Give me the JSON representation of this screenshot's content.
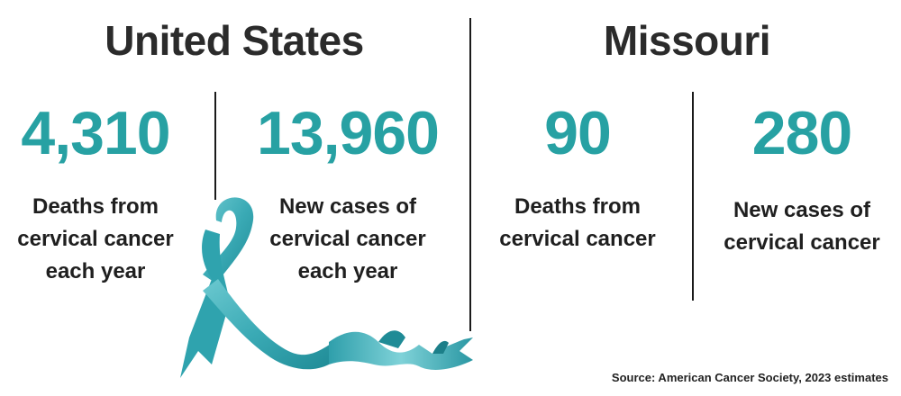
{
  "us": {
    "title": "United States",
    "deaths": {
      "value": "4,310",
      "label": [
        "Deaths from",
        "cervical cancer",
        "each year"
      ]
    },
    "cases": {
      "value": "13,960",
      "label": [
        "New cases of",
        "cervical cancer",
        "each year"
      ]
    }
  },
  "missouri": {
    "title": "Missouri",
    "deaths": {
      "value": "90",
      "label": [
        "Deaths from",
        "cervical cancer"
      ]
    },
    "cases": {
      "value": "280",
      "label": [
        "New cases of",
        "cervical cancer"
      ]
    }
  },
  "source": "Source: American Cancer Society, 2023 estimates",
  "colors": {
    "accent": "#27a1a3",
    "ribbon": "#3fb3be",
    "text": "#222222"
  },
  "icons": {
    "ribbon": "awareness-ribbon-icon"
  }
}
